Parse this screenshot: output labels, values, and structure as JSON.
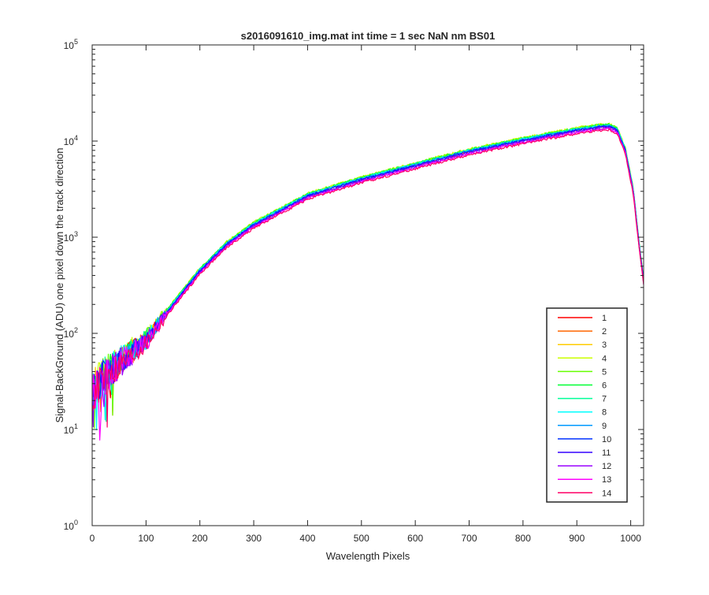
{
  "chart_data": {
    "type": "line",
    "title": "s2016091610_img.mat int time = 1 sec  NaN nm BS01",
    "xlabel": "Wavelength Pixels",
    "ylabel": "Signal-BackGround (ADU) one pixel down the track direction",
    "xlim": [
      0,
      1024
    ],
    "ylim": [
      1,
      100000
    ],
    "yscale": "log",
    "x_ticks": [
      "0",
      "100",
      "200",
      "300",
      "400",
      "500",
      "600",
      "700",
      "800",
      "900",
      "1000"
    ],
    "y_ticks": [
      {
        "base": "10",
        "exp": "0"
      },
      {
        "base": "10",
        "exp": "1"
      },
      {
        "base": "10",
        "exp": "2"
      },
      {
        "base": "10",
        "exp": "3"
      },
      {
        "base": "10",
        "exp": "4"
      },
      {
        "base": "10",
        "exp": "5"
      }
    ],
    "grid": false,
    "legend_position": "bottom-right",
    "base_curve": {
      "x": [
        0,
        20,
        50,
        100,
        150,
        200,
        250,
        300,
        400,
        500,
        600,
        700,
        800,
        900,
        940,
        960,
        975,
        990,
        1005,
        1015,
        1024
      ],
      "y": [
        25,
        35,
        50,
        85,
        200,
        450,
        850,
        1350,
        2700,
        4000,
        5600,
        7800,
        10200,
        13000,
        14000,
        14200,
        13000,
        8000,
        3000,
        900,
        350
      ]
    },
    "series": [
      {
        "name": "1",
        "color": "#ff0000",
        "scale": 1.0
      },
      {
        "name": "2",
        "color": "#ff6600",
        "scale": 1.01
      },
      {
        "name": "3",
        "color": "#ffcc00",
        "scale": 1.03
      },
      {
        "name": "4",
        "color": "#ccff00",
        "scale": 1.06
      },
      {
        "name": "5",
        "color": "#66ff00",
        "scale": 1.05
      },
      {
        "name": "6",
        "color": "#00ff33",
        "scale": 1.04
      },
      {
        "name": "7",
        "color": "#00ff99",
        "scale": 1.03
      },
      {
        "name": "8",
        "color": "#00ffff",
        "scale": 1.02
      },
      {
        "name": "9",
        "color": "#0099ff",
        "scale": 1.01
      },
      {
        "name": "10",
        "color": "#0033ff",
        "scale": 1.0
      },
      {
        "name": "11",
        "color": "#3300ff",
        "scale": 0.98
      },
      {
        "name": "12",
        "color": "#9900ff",
        "scale": 0.96
      },
      {
        "name": "13",
        "color": "#ff00ff",
        "scale": 0.94
      },
      {
        "name": "14",
        "color": "#ff0066",
        "scale": 0.92
      }
    ]
  }
}
